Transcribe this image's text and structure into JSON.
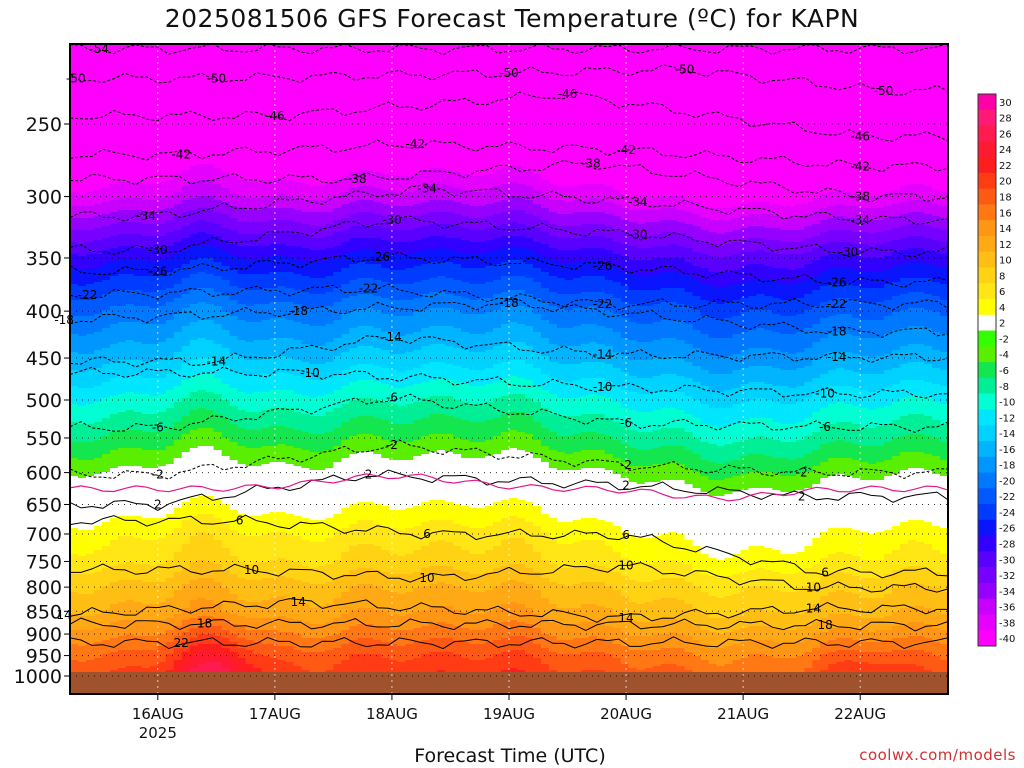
{
  "title": "2025081506 GFS Forecast Temperature (ºC) for KAPN",
  "xlabel": "Forecast Time (UTC)",
  "credit": "coolwx.com/models",
  "chart_data": {
    "type": "heatmap",
    "title": "2025081506 GFS Forecast Temperature (ºC) for KAPN",
    "xlabel": "Forecast Time (UTC)",
    "ylabel": "",
    "y_scale": "log-pressure (hPa), reversed",
    "ylim": [
      1000,
      200
    ],
    "xlim": [
      "2025-08-15 06:00",
      "2025-08-22 18:00"
    ],
    "x_ticks": [
      {
        "date": "2025-08-16 00:00",
        "label": "16AUG",
        "sublabel": "2025"
      },
      {
        "date": "2025-08-17 00:00",
        "label": "17AUG",
        "sublabel": ""
      },
      {
        "date": "2025-08-18 00:00",
        "label": "18AUG",
        "sublabel": ""
      },
      {
        "date": "2025-08-19 00:00",
        "label": "19AUG",
        "sublabel": ""
      },
      {
        "date": "2025-08-20 00:00",
        "label": "20AUG",
        "sublabel": ""
      },
      {
        "date": "2025-08-21 00:00",
        "label": "21AUG",
        "sublabel": ""
      },
      {
        "date": "2025-08-22 00:00",
        "label": "22AUG",
        "sublabel": ""
      }
    ],
    "y_ticks": [
      250,
      300,
      350,
      400,
      450,
      500,
      550,
      600,
      650,
      700,
      750,
      800,
      850,
      900,
      950,
      1000
    ],
    "grid": true,
    "colorbar": {
      "placement": "right",
      "labels": [
        "30",
        "28",
        "26",
        "24",
        "22",
        "20",
        "18",
        "16",
        "14",
        "12",
        "10",
        "8",
        "6",
        "4",
        "2",
        "-2",
        "-4",
        "-6",
        "-8",
        "-10",
        "-12",
        "-14",
        "-16",
        "-18",
        "-20",
        "-22",
        "-24",
        "-26",
        "-28",
        "-30",
        "-32",
        "-34",
        "-36",
        "-38",
        "-40"
      ],
      "colors": [
        "#ff00a8",
        "#ff1a78",
        "#ff1a50",
        "#ff1a32",
        "#ff1e1e",
        "#ff3c14",
        "#ff5a14",
        "#ff7814",
        "#ff9614",
        "#ffaa14",
        "#ffbe14",
        "#ffd214",
        "#ffe614",
        "#ffff00",
        "#ffffff",
        "#32ff00",
        "#5aee00",
        "#14e650",
        "#00ee96",
        "#00ffd2",
        "#00e6ff",
        "#00d2ff",
        "#00b4ff",
        "#0096ff",
        "#0078ff",
        "#005aff",
        "#003cff",
        "#0a14ff",
        "#3200ff",
        "#5a00ff",
        "#7800ff",
        "#9600ff",
        "#c800ff",
        "#e600ff",
        "#ff00ff"
      ]
    },
    "profile_at_levels": [
      {
        "p": 1000,
        "t": 20
      },
      {
        "p": 950,
        "t": 18
      },
      {
        "p": 900,
        "t": 15
      },
      {
        "p": 850,
        "t": 12
      },
      {
        "p": 800,
        "t": 10
      },
      {
        "p": 750,
        "t": 7
      },
      {
        "p": 700,
        "t": 5
      },
      {
        "p": 650,
        "t": 2
      },
      {
        "p": 600,
        "t": -2
      },
      {
        "p": 550,
        "t": -6
      },
      {
        "p": 500,
        "t": -10
      },
      {
        "p": 450,
        "t": -15
      },
      {
        "p": 400,
        "t": -20
      },
      {
        "p": 350,
        "t": -27
      },
      {
        "p": 300,
        "t": -37
      },
      {
        "p": 250,
        "t": -46
      },
      {
        "p": 210,
        "t": -52
      }
    ],
    "contours": [
      {
        "level": -54,
        "p_at_times": [
          [
            15.5,
            207
          ]
        ]
      },
      {
        "level": -50,
        "p_at_times": [
          [
            15.3,
            223
          ],
          [
            16.5,
            223
          ],
          [
            19.0,
            220
          ],
          [
            20.5,
            218
          ],
          [
            22.2,
            230
          ]
        ]
      },
      {
        "level": -46,
        "p_at_times": [
          [
            17.0,
            245
          ],
          [
            19.5,
            232
          ],
          [
            22.0,
            258
          ]
        ]
      },
      {
        "level": -42,
        "p_at_times": [
          [
            16.2,
            270
          ],
          [
            18.2,
            263
          ],
          [
            20.0,
            267
          ],
          [
            22.0,
            278
          ]
        ]
      },
      {
        "level": -38,
        "p_at_times": [
          [
            17.7,
            287
          ],
          [
            19.7,
            276
          ],
          [
            22.0,
            300
          ]
        ]
      },
      {
        "level": -34,
        "p_at_times": [
          [
            15.9,
            315
          ],
          [
            18.3,
            294
          ],
          [
            20.1,
            304
          ],
          [
            22.0,
            318
          ]
        ]
      },
      {
        "level": -30,
        "p_at_times": [
          [
            16.0,
            343
          ],
          [
            18.0,
            318
          ],
          [
            20.1,
            330
          ],
          [
            21.9,
            345
          ]
        ]
      },
      {
        "level": -26,
        "p_at_times": [
          [
            16.0,
            362
          ],
          [
            17.9,
            349
          ],
          [
            19.8,
            357
          ],
          [
            21.8,
            372
          ]
        ]
      },
      {
        "level": -22,
        "p_at_times": [
          [
            15.4,
            384
          ],
          [
            17.8,
            378
          ],
          [
            19.8,
            393
          ],
          [
            21.8,
            393
          ]
        ]
      },
      {
        "level": -18,
        "p_at_times": [
          [
            15.2,
            409
          ],
          [
            17.2,
            400
          ],
          [
            19.0,
            392
          ],
          [
            21.8,
            421
          ]
        ]
      },
      {
        "level": -14,
        "p_at_times": [
          [
            16.5,
            454
          ],
          [
            18.0,
            427
          ],
          [
            19.8,
            446
          ],
          [
            21.8,
            449
          ]
        ]
      },
      {
        "level": -10,
        "p_at_times": [
          [
            17.3,
            467
          ],
          [
            19.8,
            484
          ],
          [
            21.7,
            492
          ]
        ]
      },
      {
        "level": -6,
        "p_at_times": [
          [
            16.0,
            536
          ],
          [
            18.0,
            497
          ],
          [
            20.0,
            530
          ],
          [
            21.7,
            535
          ]
        ]
      },
      {
        "level": -2,
        "p_at_times": [
          [
            16.0,
            603
          ],
          [
            18.0,
            560
          ],
          [
            20.0,
            589
          ],
          [
            21.5,
            600
          ]
        ]
      },
      {
        "level": 2,
        "p_at_times": [
          [
            16.0,
            650
          ],
          [
            17.8,
            603
          ],
          [
            20.0,
            620
          ],
          [
            21.5,
            637
          ]
        ]
      },
      {
        "level": 6,
        "p_at_times": [
          [
            16.7,
            677
          ],
          [
            18.3,
            700
          ],
          [
            20.0,
            702
          ],
          [
            21.7,
            771
          ]
        ]
      },
      {
        "level": 10,
        "p_at_times": [
          [
            16.8,
            766
          ],
          [
            18.3,
            782
          ],
          [
            20.0,
            758
          ],
          [
            21.6,
            801
          ]
        ]
      },
      {
        "level": 14,
        "p_at_times": [
          [
            15.2,
            858
          ],
          [
            17.2,
            830
          ],
          [
            20.0,
            864
          ],
          [
            21.6,
            844
          ]
        ]
      },
      {
        "level": 18,
        "p_at_times": [
          [
            16.4,
            877
          ],
          [
            21.7,
            880
          ]
        ]
      },
      {
        "level": 22,
        "p_at_times": [
          [
            16.2,
            920
          ]
        ]
      }
    ]
  }
}
